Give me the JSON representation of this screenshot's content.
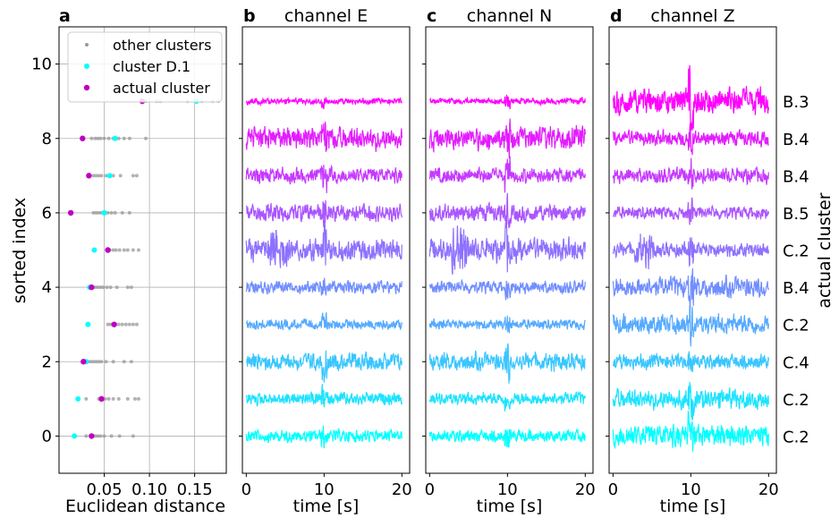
{
  "chart_data": [
    {
      "type": "scatter",
      "panel_letter": "a",
      "xlabel": "Euclidean distance",
      "ylabel": "sorted index",
      "xlim": [
        0.0,
        0.185
      ],
      "ylim": [
        -1,
        11
      ],
      "xticks": [
        0.05,
        0.1,
        0.15
      ],
      "xtick_labels": [
        "0.05",
        "0.10",
        "0.15"
      ],
      "yticks": [
        0,
        2,
        4,
        6,
        8,
        10
      ],
      "ytick_labels": [
        "0",
        "2",
        "4",
        "6",
        "8",
        "10"
      ],
      "grid": true,
      "legend_position": "top-right",
      "legend": [
        "other clusters",
        "cluster D.1",
        "actual cluster"
      ],
      "series": [
        {
          "name": "other clusters",
          "color": "#999999",
          "points": [
            [
              0.03,
              0
            ],
            [
              0.036,
              0
            ],
            [
              0.04,
              0
            ],
            [
              0.043,
              0
            ],
            [
              0.046,
              0
            ],
            [
              0.05,
              0
            ],
            [
              0.058,
              0
            ],
            [
              0.067,
              0
            ],
            [
              0.082,
              0
            ],
            [
              0.03,
              1
            ],
            [
              0.044,
              1
            ],
            [
              0.047,
              1
            ],
            [
              0.051,
              1
            ],
            [
              0.055,
              1
            ],
            [
              0.06,
              1
            ],
            [
              0.066,
              1
            ],
            [
              0.076,
              1
            ],
            [
              0.084,
              1
            ],
            [
              0.088,
              1
            ],
            [
              0.032,
              2
            ],
            [
              0.035,
              2
            ],
            [
              0.038,
              2
            ],
            [
              0.041,
              2
            ],
            [
              0.044,
              2
            ],
            [
              0.047,
              2
            ],
            [
              0.052,
              2
            ],
            [
              0.06,
              2
            ],
            [
              0.072,
              2
            ],
            [
              0.08,
              2
            ],
            [
              0.054,
              3
            ],
            [
              0.057,
              3
            ],
            [
              0.062,
              3
            ],
            [
              0.066,
              3
            ],
            [
              0.07,
              3
            ],
            [
              0.074,
              3
            ],
            [
              0.078,
              3
            ],
            [
              0.082,
              3
            ],
            [
              0.086,
              3
            ],
            [
              0.033,
              4
            ],
            [
              0.036,
              4
            ],
            [
              0.04,
              4
            ],
            [
              0.043,
              4
            ],
            [
              0.046,
              4
            ],
            [
              0.049,
              4
            ],
            [
              0.053,
              4
            ],
            [
              0.057,
              4
            ],
            [
              0.064,
              4
            ],
            [
              0.076,
              4
            ],
            [
              0.08,
              4
            ],
            [
              0.056,
              5
            ],
            [
              0.06,
              5
            ],
            [
              0.063,
              5
            ],
            [
              0.067,
              5
            ],
            [
              0.072,
              5
            ],
            [
              0.076,
              5
            ],
            [
              0.082,
              5
            ],
            [
              0.088,
              5
            ],
            [
              0.038,
              6
            ],
            [
              0.041,
              6
            ],
            [
              0.044,
              6
            ],
            [
              0.047,
              6
            ],
            [
              0.05,
              6
            ],
            [
              0.054,
              6
            ],
            [
              0.058,
              6
            ],
            [
              0.062,
              6
            ],
            [
              0.07,
              6
            ],
            [
              0.078,
              6
            ],
            [
              0.034,
              7
            ],
            [
              0.038,
              7
            ],
            [
              0.041,
              7
            ],
            [
              0.044,
              7
            ],
            [
              0.047,
              7
            ],
            [
              0.052,
              7
            ],
            [
              0.06,
              7
            ],
            [
              0.068,
              7
            ],
            [
              0.082,
              7
            ],
            [
              0.086,
              7
            ],
            [
              0.036,
              8
            ],
            [
              0.04,
              8
            ],
            [
              0.043,
              8
            ],
            [
              0.046,
              8
            ],
            [
              0.05,
              8
            ],
            [
              0.055,
              8
            ],
            [
              0.06,
              8
            ],
            [
              0.066,
              8
            ],
            [
              0.072,
              8
            ],
            [
              0.078,
              8
            ],
            [
              0.096,
              8
            ],
            [
              0.096,
              9
            ],
            [
              0.108,
              9
            ],
            [
              0.112,
              9
            ],
            [
              0.142,
              9
            ],
            [
              0.158,
              9
            ],
            [
              0.17,
              9
            ],
            [
              0.176,
              9
            ]
          ]
        },
        {
          "name": "cluster D.1",
          "color": "#00ffff",
          "points": [
            [
              0.017,
              0
            ],
            [
              0.021,
              1
            ],
            [
              0.03,
              2
            ],
            [
              0.032,
              3
            ],
            [
              0.034,
              4
            ],
            [
              0.039,
              5
            ],
            [
              0.05,
              6
            ],
            [
              0.056,
              7
            ],
            [
              0.062,
              8
            ],
            [
              0.152,
              9
            ]
          ]
        },
        {
          "name": "actual cluster",
          "color": "#c000c0",
          "points": [
            [
              0.036,
              0
            ],
            [
              0.047,
              1
            ],
            [
              0.027,
              2
            ],
            [
              0.061,
              3
            ],
            [
              0.036,
              4
            ],
            [
              0.054,
              5
            ],
            [
              0.013,
              6
            ],
            [
              0.033,
              7
            ],
            [
              0.026,
              8
            ],
            [
              0.092,
              9
            ]
          ]
        }
      ]
    },
    {
      "type": "line",
      "panel_letter": "b",
      "title": "channel E",
      "xlabel": "time [s]",
      "xlim": [
        -0.5,
        21
      ],
      "xticks": [
        0,
        10,
        20
      ],
      "xtick_labels": [
        "0",
        "10",
        "20"
      ],
      "ylim": [
        -1,
        11
      ],
      "rows": [
        0,
        1,
        2,
        3,
        4,
        5,
        6,
        7,
        8,
        9
      ],
      "amplitudes": [
        0.25,
        0.25,
        0.35,
        0.2,
        0.25,
        0.45,
        0.35,
        0.3,
        0.45,
        0.12
      ],
      "event_time_s": 10
    },
    {
      "type": "line",
      "panel_letter": "c",
      "title": "channel N",
      "xlabel": "time [s]",
      "xlim": [
        -0.5,
        21
      ],
      "xticks": [
        0,
        10,
        20
      ],
      "xtick_labels": [
        "0",
        "10",
        "20"
      ],
      "ylim": [
        -1,
        11
      ],
      "rows": [
        0,
        1,
        2,
        3,
        4,
        5,
        6,
        7,
        8,
        9
      ],
      "amplitudes": [
        0.25,
        0.25,
        0.35,
        0.2,
        0.25,
        0.45,
        0.35,
        0.3,
        0.45,
        0.12
      ],
      "event_time_s": 10
    },
    {
      "type": "line",
      "panel_letter": "d",
      "title": "channel Z",
      "xlabel": "time [s]",
      "xlim": [
        -0.5,
        21
      ],
      "xticks": [
        0,
        10,
        20
      ],
      "xtick_labels": [
        "0",
        "10",
        "20"
      ],
      "ylim": [
        -1,
        11
      ],
      "right_axis_label": "actual cluster",
      "row_labels": [
        "C.2",
        "C.2",
        "C.4",
        "C.2",
        "B.4",
        "C.2",
        "B.5",
        "B.4",
        "B.4",
        "B.3"
      ],
      "rows": [
        0,
        1,
        2,
        3,
        4,
        5,
        6,
        7,
        8,
        9
      ],
      "amplitudes": [
        0.45,
        0.4,
        0.3,
        0.4,
        0.4,
        0.3,
        0.25,
        0.3,
        0.3,
        0.55
      ],
      "event_time_s": 10
    }
  ]
}
